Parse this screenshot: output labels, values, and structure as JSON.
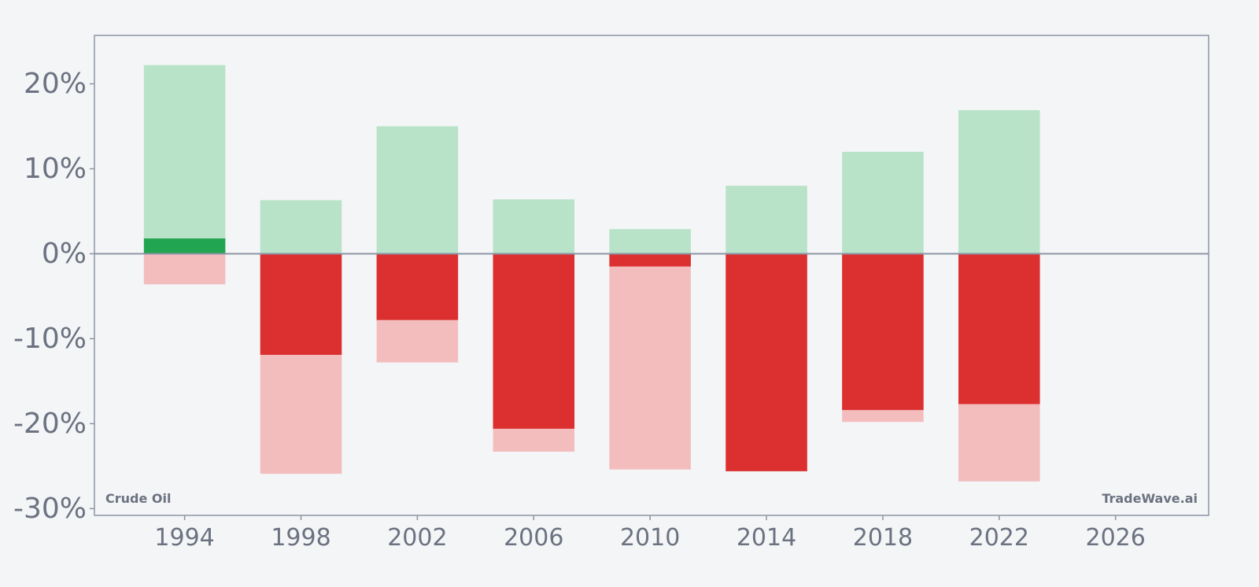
{
  "chart_data": {
    "type": "bar",
    "x": [
      1994,
      1998,
      2002,
      2006,
      2010,
      2014,
      2018,
      2022
    ],
    "series": [
      {
        "role": "range_high",
        "values": [
          22.2,
          6.3,
          15.0,
          6.4,
          2.9,
          8.0,
          12.0,
          16.9
        ]
      },
      {
        "role": "range_low",
        "values": [
          -3.6,
          -25.9,
          -12.8,
          -23.3,
          -25.4,
          -25.6,
          -19.8,
          -26.8
        ]
      },
      {
        "role": "return",
        "values": [
          1.8,
          -11.9,
          -7.8,
          -20.6,
          -1.5,
          -25.6,
          -18.4,
          -17.7
        ]
      }
    ],
    "x_ticks": [
      1994,
      1998,
      2002,
      2006,
      2010,
      2014,
      2018,
      2022,
      2026
    ],
    "y_ticks": [
      20,
      10,
      0,
      -10,
      -20,
      -30
    ],
    "y_tick_labels": [
      "20%",
      "10%",
      "0%",
      "-10%",
      "-20%",
      "-30%"
    ],
    "x_tick_labels": [
      "1994",
      "1998",
      "2002",
      "2006",
      "2010",
      "2014",
      "2018",
      "2022",
      "2026"
    ],
    "xlim": [
      1990.9,
      2029.2
    ],
    "ylim": [
      -30.8,
      25.7
    ],
    "grid": false,
    "bar_width_years": 2.8,
    "colors": {
      "range_high": "#b8e3c8",
      "range_low": "#f3bdbe",
      "return_positive": "#22a551",
      "return_negative": "#dc3030",
      "zero_line": "#8b95a3",
      "frame": "#8b95a3",
      "background": "#f4f5f7"
    },
    "asset_label": "Crude Oil",
    "watermark": "TradeWave.ai"
  }
}
